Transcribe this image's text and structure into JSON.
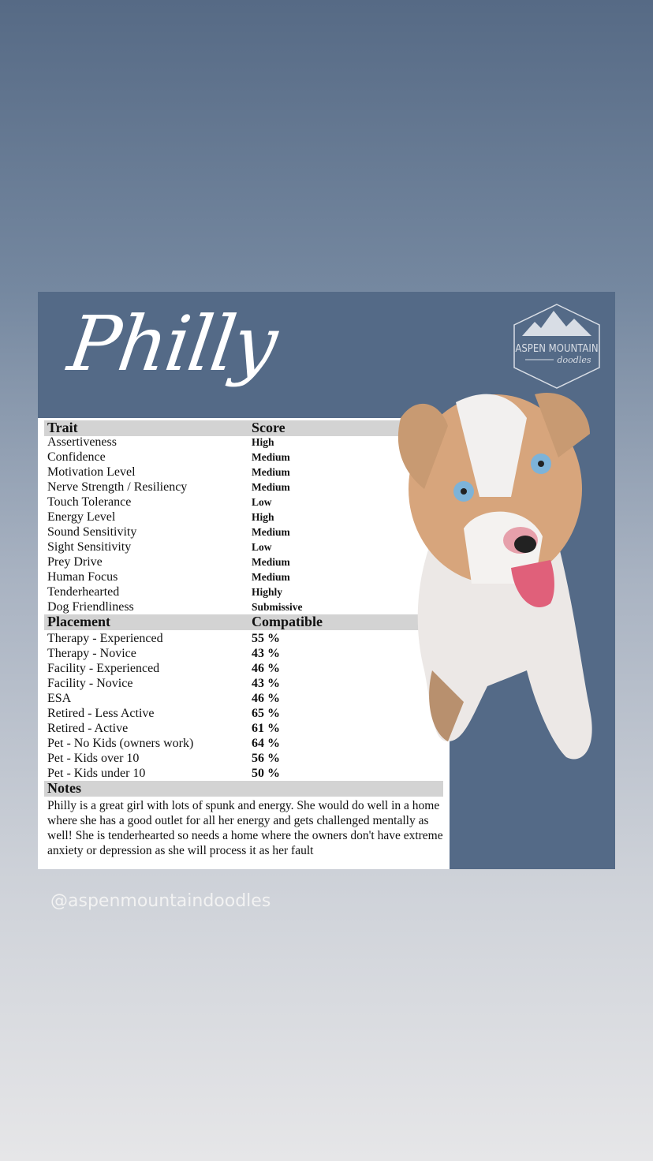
{
  "card": {
    "title": "Philly",
    "logo_text": "ASPEN MOUNTAIN doodles",
    "traits_header": {
      "name": "Trait",
      "value": "Score"
    },
    "traits": [
      {
        "name": "Assertiveness",
        "value": "High"
      },
      {
        "name": "Confidence",
        "value": "Medium"
      },
      {
        "name": "Motivation Level",
        "value": "Medium"
      },
      {
        "name": "Nerve Strength / Resiliency",
        "value": "Medium"
      },
      {
        "name": "Touch Tolerance",
        "value": "Low"
      },
      {
        "name": "Energy Level",
        "value": "High"
      },
      {
        "name": "Sound Sensitivity",
        "value": "Medium"
      },
      {
        "name": "Sight Sensitivity",
        "value": "Low"
      },
      {
        "name": "Prey Drive",
        "value": "Medium"
      },
      {
        "name": "Human Focus",
        "value": "Medium"
      },
      {
        "name": "Tenderhearted",
        "value": "Highly"
      },
      {
        "name": "Dog Friendliness",
        "value": "Submissive"
      }
    ],
    "placement_header": {
      "name": "Placement",
      "value": "Compatible"
    },
    "placements": [
      {
        "name": "Therapy - Experienced",
        "value": "55 %"
      },
      {
        "name": "Therapy - Novice",
        "value": "43 %"
      },
      {
        "name": "Facility - Experienced",
        "value": "46 %"
      },
      {
        "name": "Facility - Novice",
        "value": "43 %"
      },
      {
        "name": "ESA",
        "value": "46 %"
      },
      {
        "name": "Retired - Less Active",
        "value": "65 %"
      },
      {
        "name": "Retired - Active",
        "value": "61 %"
      },
      {
        "name": "Pet - No Kids (owners work)",
        "value": "64 %"
      },
      {
        "name": "Pet - Kids over 10",
        "value": "56 %"
      },
      {
        "name": "Pet - Kids under 10",
        "value": "50 %"
      }
    ],
    "notes_header": "Notes",
    "notes": "Philly is a great girl with lots of spunk and energy. She would do well in a home where she has a good outlet for all her energy and gets challenged mentally as well! She is tenderhearted so needs a home where the owners don't have extreme anxiety or depression as she will process it as her fault"
  },
  "handle": "@aspenmountaindoodles",
  "colors": {
    "card": "#546a87",
    "header_row": "#d3d3d3"
  }
}
